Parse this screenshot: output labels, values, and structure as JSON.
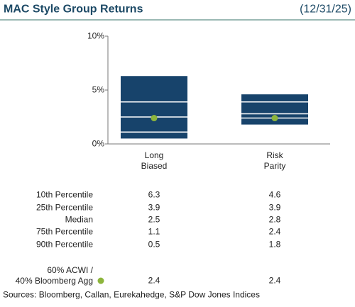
{
  "chart_data": {
    "type": "box",
    "title": "MAC Style Group Returns",
    "date": "(12/31/25)",
    "categories": [
      "Long\nBiased",
      "Risk\nParity"
    ],
    "ylim": [
      0,
      10
    ],
    "yticks": [
      {
        "value": 0,
        "label": "0%"
      },
      {
        "value": 5,
        "label": "5%"
      },
      {
        "value": 10,
        "label": "10%"
      }
    ],
    "color": "#17436b",
    "series": [
      {
        "name": "10th Percentile",
        "values": [
          6.3,
          4.6
        ]
      },
      {
        "name": "25th Percentile",
        "values": [
          3.9,
          3.9
        ]
      },
      {
        "name": "Median",
        "values": [
          2.5,
          2.8
        ]
      },
      {
        "name": "75th Percentile",
        "values": [
          1.1,
          2.4
        ]
      },
      {
        "name": "90th Percentile",
        "values": [
          0.5,
          1.8
        ]
      }
    ],
    "benchmark": {
      "name": "60% ACWI /\n40% Bloomberg Agg",
      "values": [
        2.4,
        2.4
      ],
      "color": "#8db53c"
    },
    "source": "Sources: Bloomberg, Callan, Eurekahedge, S&P Dow Jones Indices"
  }
}
